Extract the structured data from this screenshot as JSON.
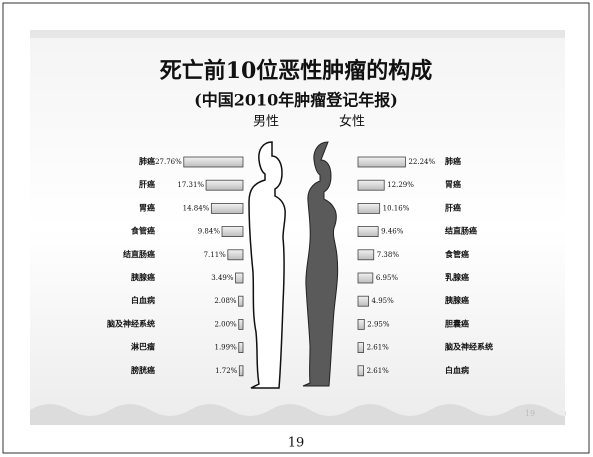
{
  "slide": {
    "title": "死亡前10位恶性肿瘤的构成",
    "subtitle": "(中国2010年肿瘤登记年报)",
    "slide_number": "19"
  },
  "page_number": "19",
  "chart_data": [
    {
      "type": "bar",
      "orientation": "horizontal",
      "title": "男性",
      "color": "#d9d9d9",
      "categories": [
        "肺癌",
        "肝癌",
        "胃癌",
        "食管癌",
        "结直肠癌",
        "胰腺癌",
        "白血病",
        "脑及神经系统",
        "淋巴瘤",
        "膀胱癌"
      ],
      "values": [
        27.76,
        17.31,
        14.84,
        9.84,
        7.11,
        3.49,
        2.08,
        2.0,
        1.99,
        1.72
      ],
      "value_labels": [
        "27.76%",
        "17.31%",
        "14.84%",
        "9.84%",
        "7.11%",
        "3.49%",
        "2.08%",
        "2.00%",
        "1.99%",
        "1.72%"
      ],
      "xlim": [
        0,
        30
      ]
    },
    {
      "type": "bar",
      "orientation": "horizontal",
      "title": "女性",
      "color": "#d9d9d9",
      "categories": [
        "肺癌",
        "胃癌",
        "肝癌",
        "结直肠癌",
        "食管癌",
        "乳腺癌",
        "胰腺癌",
        "胆囊癌",
        "脑及神经系统",
        "白血病"
      ],
      "values": [
        22.24,
        12.29,
        10.16,
        9.46,
        7.38,
        6.95,
        4.95,
        2.95,
        2.61,
        2.61
      ],
      "value_labels": [
        "22.24%",
        "12.29%",
        "10.16%",
        "9.46%",
        "7.38%",
        "6.95%",
        "4.95%",
        "2.95%",
        "2.61%",
        "2.61%"
      ],
      "xlim": [
        0,
        30
      ]
    }
  ]
}
